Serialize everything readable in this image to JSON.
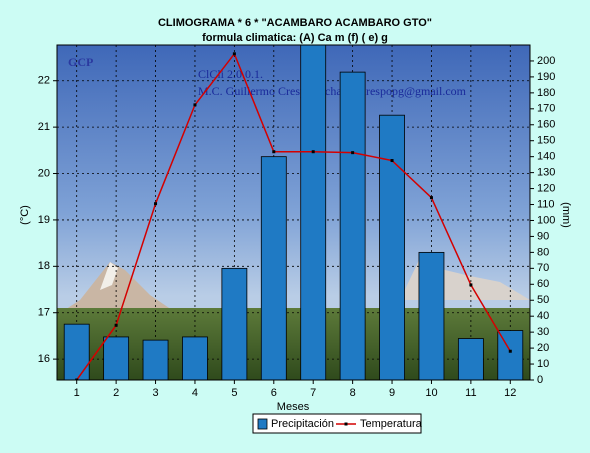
{
  "chart_data": {
    "type": "bar",
    "title": "CLIMOGRAMA *       6   * \"ACAMBARO  ACAMBARO  GTO\"",
    "subtitle": "formula climatica: (A) Ca  m (f) ( e) g",
    "x_label": "Meses",
    "y_label": "(°C)",
    "y2_label": "(mm)",
    "annotations": [
      "GCP",
      "ClCli 2.0.0.1.",
      "M.C. Guillermo Crespo Pichardo  crespopg@gmail.com"
    ],
    "categories": [
      "1",
      "2",
      "3",
      "4",
      "5",
      "6",
      "7",
      "8",
      "9",
      "10",
      "11",
      "12"
    ],
    "series": [
      {
        "name": "Precipitación",
        "type": "bar",
        "axis": "y2",
        "color": "#1f7ac4",
        "values": [
          35,
          27,
          25,
          27,
          70,
          140,
          215,
          193,
          166,
          80,
          26,
          31
        ]
      },
      {
        "name": "Temperatura",
        "type": "line",
        "axis": "y",
        "color": "#d40000",
        "values": [
          15.55,
          16.73,
          19.35,
          21.48,
          22.58,
          20.47,
          20.47,
          20.45,
          20.28,
          19.48,
          17.6,
          16.17
        ]
      }
    ],
    "ylim": [
      15.55,
      22.77
    ],
    "yticks": [
      16,
      17,
      18,
      19,
      20,
      21,
      22
    ],
    "y2lim": [
      0,
      210
    ],
    "y2ticks": [
      0,
      10,
      20,
      30,
      40,
      50,
      60,
      70,
      80,
      90,
      100,
      110,
      120,
      130,
      140,
      150,
      160,
      170,
      180,
      190,
      200
    ],
    "grid": true,
    "legend": "bottom"
  }
}
